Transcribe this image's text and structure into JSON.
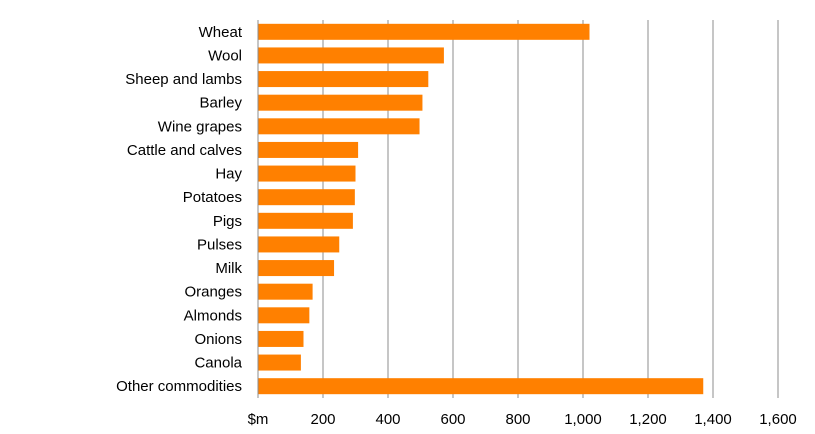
{
  "chart_data": {
    "type": "bar",
    "orientation": "horizontal",
    "categories": [
      "Wheat",
      "Wool",
      "Sheep and lambs",
      "Barley",
      "Wine grapes",
      "Cattle and calves",
      "Hay",
      "Potatoes",
      "Pigs",
      "Pulses",
      "Milk",
      "Oranges",
      "Almonds",
      "Onions",
      "Canola",
      "Other commodities"
    ],
    "values": [
      1020,
      572,
      524,
      506,
      497,
      308,
      300,
      298,
      292,
      250,
      234,
      168,
      158,
      140,
      132,
      1370
    ],
    "title": "",
    "xlabel": "",
    "ylabel": "",
    "xlim": [
      0,
      1600
    ],
    "x_ticks": [
      "$m",
      "200",
      "400",
      "600",
      "800",
      "1,000",
      "1,200",
      "1,400",
      "1,600"
    ],
    "grid": "vertical",
    "legend": "none",
    "bar_color": "#FF8000",
    "grid_color": "#8C8C8C"
  }
}
